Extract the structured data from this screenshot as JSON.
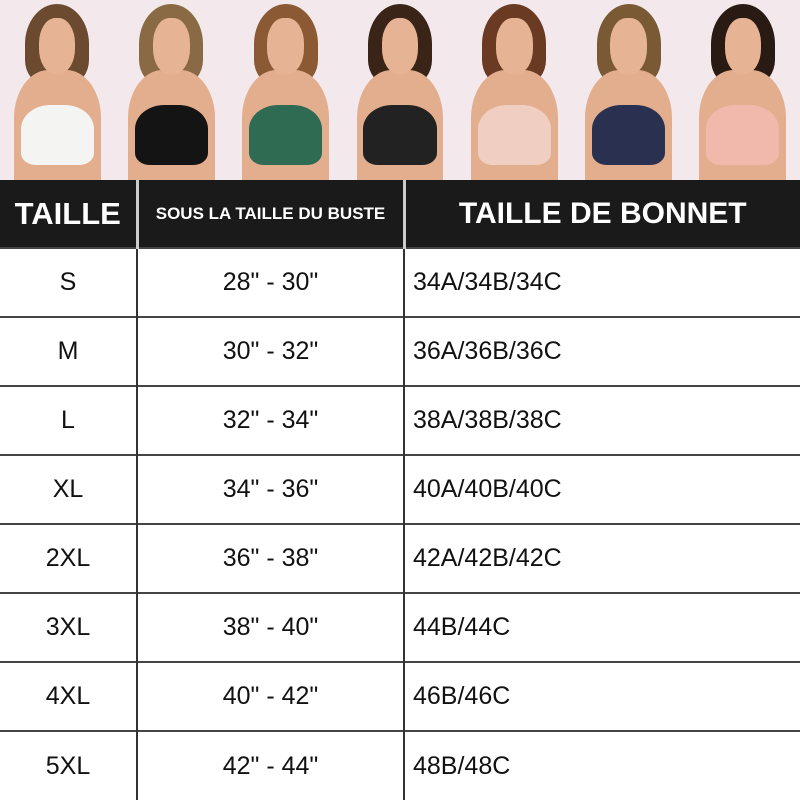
{
  "photos": [
    {
      "name": "white-bra-model",
      "hair": "#6b4a30",
      "bra": "#f4f4f2"
    },
    {
      "name": "black-bra-model",
      "hair": "#8a6a45",
      "bra": "#141414"
    },
    {
      "name": "green-bra-model",
      "hair": "#8b5a35",
      "bra": "#2f6a52"
    },
    {
      "name": "black-lace-bra-model",
      "hair": "#3a2418",
      "bra": "#222"
    },
    {
      "name": "nude-bra-model",
      "hair": "#6a3a22",
      "bra": "#f0cfc2"
    },
    {
      "name": "navy-bra-model",
      "hair": "#7a5a35",
      "bra": "#2a3150"
    },
    {
      "name": "pink-bra-model",
      "hair": "#2a1a14",
      "bra": "#f0b9ab"
    }
  ],
  "table": {
    "headers": [
      "TAILLE",
      "SOUS LA TAILLE DU BUSTE",
      "TAILLE DE BONNET"
    ],
    "rows": [
      [
        "S",
        "28\" - 30\"",
        "34A/34B/34C"
      ],
      [
        "M",
        "30\" - 32\"",
        "36A/36B/36C"
      ],
      [
        "L",
        "32\" - 34\"",
        "38A/38B/38C"
      ],
      [
        "XL",
        "34\" - 36\"",
        "40A/40B/40C"
      ],
      [
        "2XL",
        "36\" - 38\"",
        "42A/42B/42C"
      ],
      [
        "3XL",
        "38\" - 40\"",
        "44B/44C"
      ],
      [
        "4XL",
        "40\" - 42\"",
        "46B/46C"
      ],
      [
        "5XL",
        "42\" - 44\"",
        "48B/48C"
      ]
    ]
  }
}
